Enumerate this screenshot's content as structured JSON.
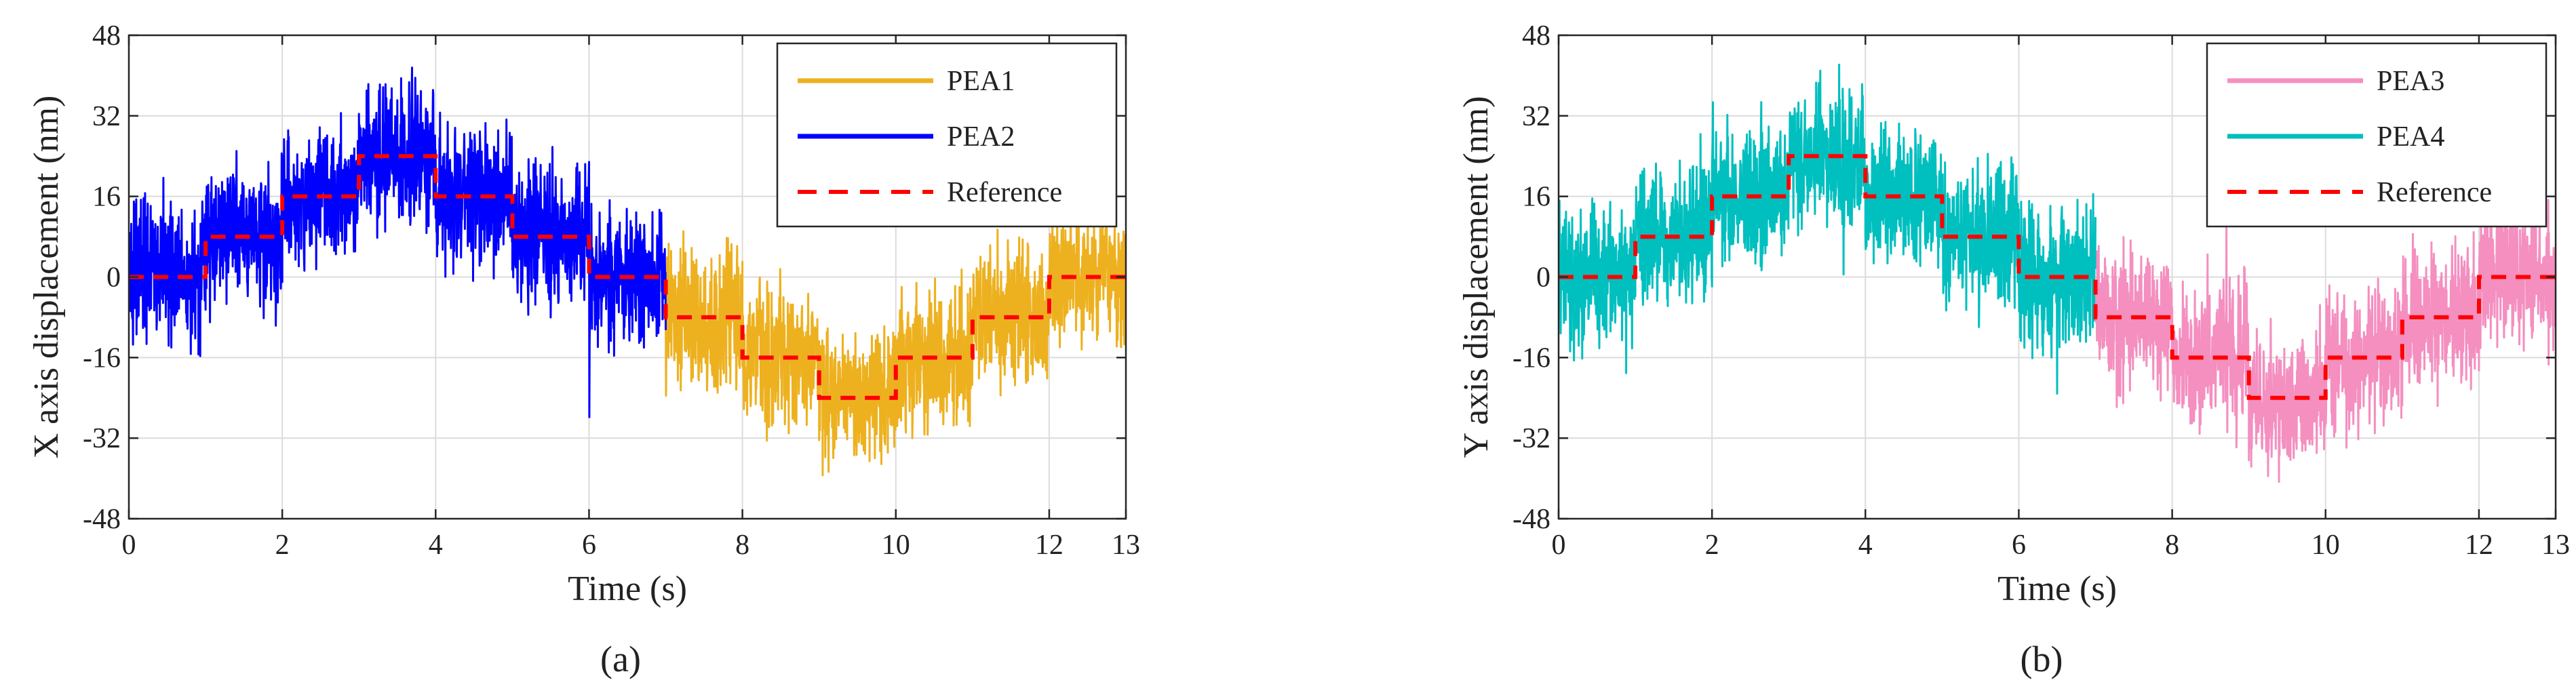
{
  "chart_data": [
    {
      "type": "line",
      "panel_label": "(a)",
      "xlabel": "Time (s)",
      "ylabel": "X axis displacement (nm)",
      "xlim": [
        0,
        13
      ],
      "ylim": [
        -48,
        48
      ],
      "xticks": [
        0,
        2,
        4,
        6,
        8,
        10,
        12,
        13
      ],
      "yticks": [
        -48,
        -32,
        -16,
        0,
        16,
        32,
        48
      ],
      "grid": true,
      "legend_position": "top-right",
      "series": [
        {
          "name": "PEA1",
          "color": "#EDB120",
          "style": "noisy-solid",
          "x_range": [
            7,
            13
          ],
          "noise_amplitude": 12,
          "steps": [
            {
              "t0": 7,
              "t1": 8,
              "y": -8
            },
            {
              "t0": 8,
              "t1": 9,
              "y": -16
            },
            {
              "t0": 9,
              "t1": 10,
              "y": -24
            },
            {
              "t0": 10,
              "t1": 11,
              "y": -16
            },
            {
              "t0": 11,
              "t1": 12,
              "y": -8
            },
            {
              "t0": 12,
              "t1": 13,
              "y": 0
            }
          ]
        },
        {
          "name": "PEA2",
          "color": "#0000FF",
          "style": "noisy-solid",
          "x_range": [
            0,
            7
          ],
          "noise_amplitude": 12,
          "steps": [
            {
              "t0": 0,
              "t1": 1,
              "y": 0
            },
            {
              "t0": 1,
              "t1": 2,
              "y": 8
            },
            {
              "t0": 2,
              "t1": 3,
              "y": 16
            },
            {
              "t0": 3,
              "t1": 4,
              "y": 24
            },
            {
              "t0": 4,
              "t1": 5,
              "y": 16
            },
            {
              "t0": 5,
              "t1": 6,
              "y": 8
            },
            {
              "t0": 6,
              "t1": 7,
              "y": 0
            }
          ]
        },
        {
          "name": "Reference",
          "color": "#FF0000",
          "style": "dashed",
          "steps_x": [
            0,
            1,
            2,
            3,
            4,
            5,
            6,
            7,
            8,
            9,
            10,
            11,
            12,
            13
          ],
          "steps_y": [
            0,
            8,
            16,
            24,
            16,
            8,
            0,
            -8,
            -16,
            -24,
            -16,
            -8,
            0
          ]
        }
      ]
    },
    {
      "type": "line",
      "panel_label": "(b)",
      "xlabel": "Time (s)",
      "ylabel": "Y axis displacement (nm)",
      "xlim": [
        0,
        13
      ],
      "ylim": [
        -48,
        48
      ],
      "xticks": [
        0,
        2,
        4,
        6,
        8,
        10,
        12,
        13
      ],
      "yticks": [
        -48,
        -32,
        -16,
        0,
        16,
        32,
        48
      ],
      "grid": true,
      "legend_position": "top-right",
      "series": [
        {
          "name": "PEA3",
          "color": "#F48FC0",
          "style": "noisy-solid",
          "x_range": [
            7,
            13
          ],
          "noise_amplitude": 12,
          "steps": [
            {
              "t0": 7,
              "t1": 8,
              "y": -8
            },
            {
              "t0": 8,
              "t1": 9,
              "y": -16
            },
            {
              "t0": 9,
              "t1": 10,
              "y": -24
            },
            {
              "t0": 10,
              "t1": 11,
              "y": -16
            },
            {
              "t0": 11,
              "t1": 12,
              "y": -8
            },
            {
              "t0": 12,
              "t1": 13,
              "y": 0
            }
          ]
        },
        {
          "name": "PEA4",
          "color": "#00BFBF",
          "style": "noisy-solid",
          "x_range": [
            0,
            7
          ],
          "noise_amplitude": 12,
          "steps": [
            {
              "t0": 0,
              "t1": 1,
              "y": 0
            },
            {
              "t0": 1,
              "t1": 2,
              "y": 8
            },
            {
              "t0": 2,
              "t1": 3,
              "y": 16
            },
            {
              "t0": 3,
              "t1": 4,
              "y": 24
            },
            {
              "t0": 4,
              "t1": 5,
              "y": 16
            },
            {
              "t0": 5,
              "t1": 6,
              "y": 8
            },
            {
              "t0": 6,
              "t1": 7,
              "y": 0
            }
          ]
        },
        {
          "name": "Reference",
          "color": "#FF0000",
          "style": "dashed",
          "steps_x": [
            0,
            1,
            2,
            3,
            4,
            5,
            6,
            7,
            8,
            9,
            10,
            11,
            12,
            13
          ],
          "steps_y": [
            0,
            8,
            16,
            24,
            16,
            8,
            0,
            -8,
            -16,
            -24,
            -16,
            -8,
            0
          ]
        }
      ]
    }
  ]
}
